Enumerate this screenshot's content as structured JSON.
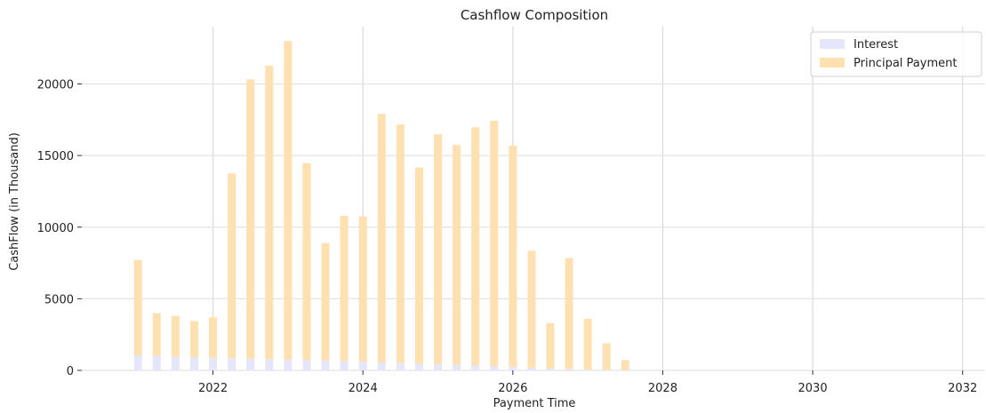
{
  "chart_data": {
    "type": "bar",
    "stacked": true,
    "title": "Cashflow Composition",
    "xlabel": "Payment Time",
    "ylabel": "CashFlow (in Thousand)",
    "xlim": [
      2020.25,
      2032.3
    ],
    "ylim": [
      0,
      24000
    ],
    "x_ticks": [
      2022,
      2024,
      2026,
      2028,
      2030,
      2032
    ],
    "y_ticks": [
      0,
      5000,
      10000,
      15000,
      20000
    ],
    "grid": true,
    "legend_position": "top-right",
    "x": [
      2021.0,
      2021.25,
      2021.5,
      2021.75,
      2022.0,
      2022.25,
      2022.5,
      2022.75,
      2023.0,
      2023.25,
      2023.5,
      2023.75,
      2024.0,
      2024.25,
      2024.5,
      2024.75,
      2025.0,
      2025.25,
      2025.5,
      2025.75,
      2026.0,
      2026.25,
      2026.5,
      2026.75,
      2027.0,
      2027.25,
      2027.5
    ],
    "series": [
      {
        "name": "Interest",
        "color": "#e6e6fa",
        "values": [
          1050,
          1000,
          950,
          920,
          880,
          850,
          820,
          780,
          750,
          720,
          680,
          640,
          600,
          560,
          520,
          470,
          430,
          390,
          340,
          290,
          240,
          180,
          130,
          100,
          70,
          40,
          20
        ]
      },
      {
        "name": "Principal Payment",
        "color": "#ffe0b0",
        "values": [
          6650,
          3000,
          2850,
          2530,
          2820,
          12900,
          19500,
          20500,
          22250,
          13750,
          8200,
          10150,
          10150,
          17350,
          16650,
          13700,
          16050,
          15350,
          16630,
          17150,
          15460,
          8170,
          3170,
          7750,
          3530,
          1850,
          700
        ]
      }
    ]
  }
}
